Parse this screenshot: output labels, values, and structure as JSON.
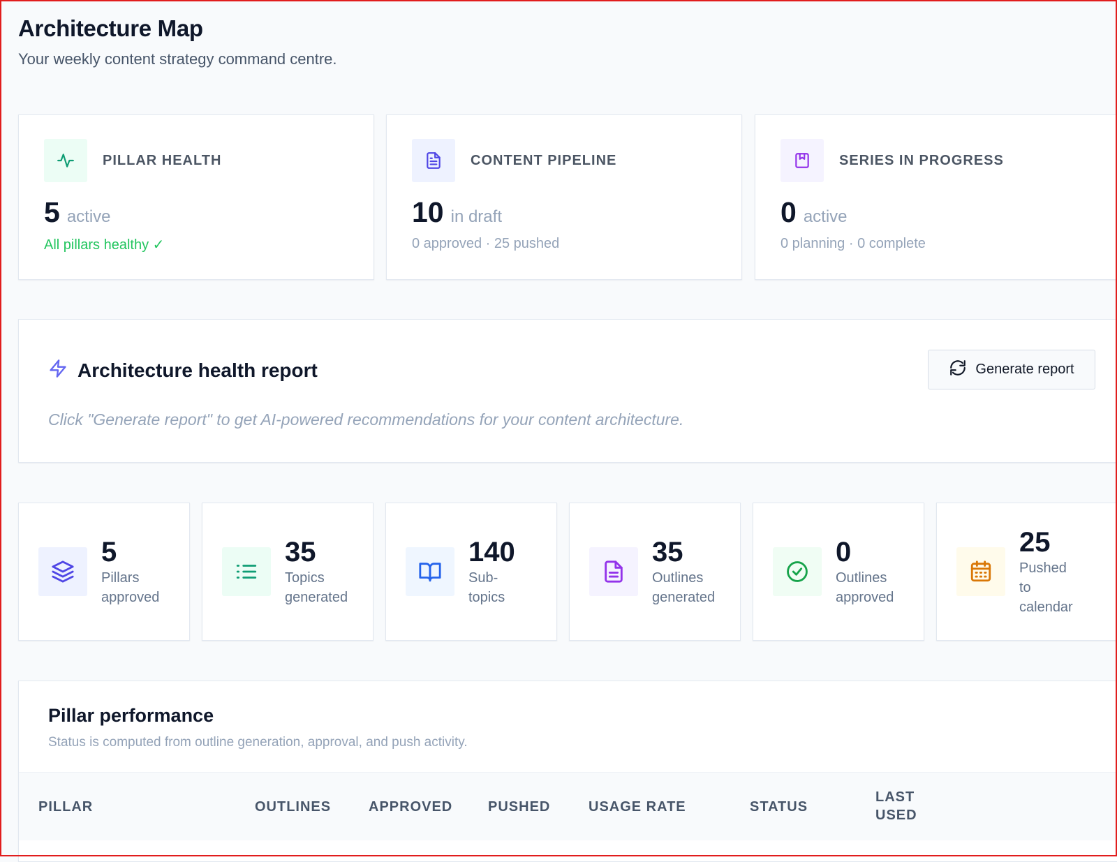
{
  "header": {
    "title": "Architecture Map",
    "subtitle": "Your weekly content strategy command centre."
  },
  "summary_cards": [
    {
      "label": "PILLAR HEALTH",
      "value": "5",
      "unit": "active",
      "sub": "All pillars healthy ✓",
      "icon": "activity-icon",
      "accent": "#0f9d74",
      "tile_bg": "#ecfdf5"
    },
    {
      "label": "CONTENT PIPELINE",
      "value": "10",
      "unit": "in draft",
      "sub": "0 approved · 25 pushed",
      "icon": "document-icon",
      "accent": "#4f46e5",
      "tile_bg": "#eef2ff"
    },
    {
      "label": "SERIES IN PROGRESS",
      "value": "0",
      "unit": "active",
      "sub": "0 planning · 0 complete",
      "icon": "bookmark-book-icon",
      "accent": "#9333ea",
      "tile_bg": "#f5f3ff"
    }
  ],
  "report": {
    "title": "Architecture health report",
    "hint": "Click \"Generate report\" to get AI-powered recommendations for your content architecture.",
    "button_label": "Generate report",
    "icon": "lightning-icon",
    "accent": "#6366f1"
  },
  "metrics": [
    {
      "value": "5",
      "label": "Pillars approved",
      "icon": "layers-icon",
      "accent": "#4f46e5",
      "tile_bg": "#eef2ff"
    },
    {
      "value": "35",
      "label": "Topics generated",
      "icon": "list-icon",
      "accent": "#0f9d74",
      "tile_bg": "#ecfdf5"
    },
    {
      "value": "140",
      "label": "Sub-topics",
      "icon": "open-book-icon",
      "accent": "#2563eb",
      "tile_bg": "#eff6ff"
    },
    {
      "value": "35",
      "label": "Outlines generated",
      "icon": "document-icon",
      "accent": "#9333ea",
      "tile_bg": "#f5f3ff"
    },
    {
      "value": "0",
      "label": "Outlines approved",
      "icon": "check-circle-icon",
      "accent": "#16a34a",
      "tile_bg": "#f0fdf4"
    },
    {
      "value": "25",
      "label": "Pushed to calendar",
      "icon": "calendar-icon",
      "accent": "#d97706",
      "tile_bg": "#fffbeb"
    }
  ],
  "performance": {
    "title": "Pillar performance",
    "subtitle": "Status is computed from outline generation, approval, and push activity.",
    "columns": [
      "PILLAR",
      "OUTLINES",
      "APPROVED",
      "PUSHED",
      "USAGE RATE",
      "STATUS",
      "LAST USED"
    ]
  }
}
